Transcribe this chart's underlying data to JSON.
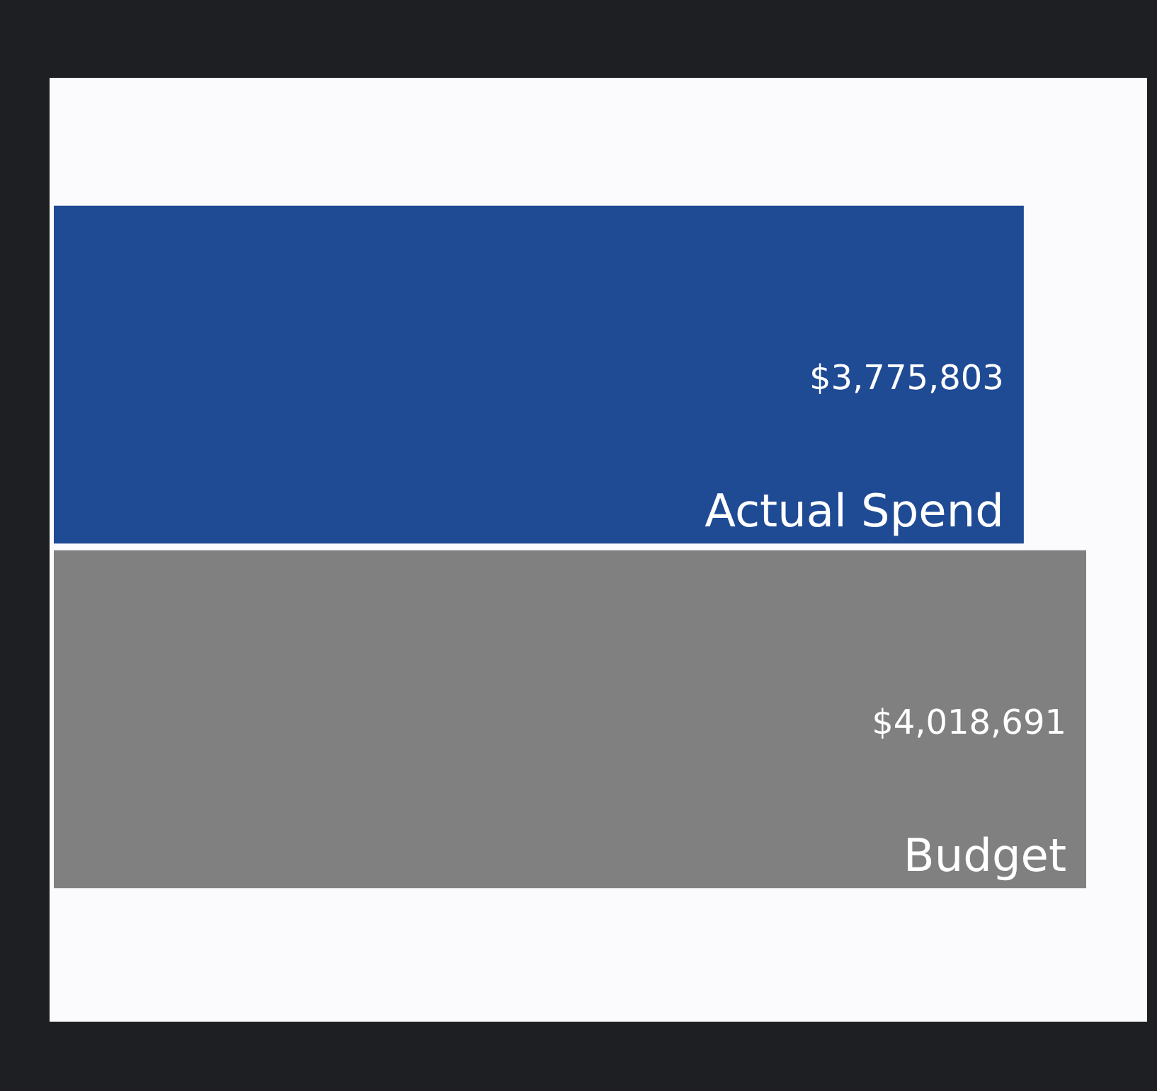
{
  "chart_data": {
    "type": "bar",
    "orientation": "horizontal",
    "categories": [
      "Actual Spend",
      "Budget"
    ],
    "values": [
      3775803,
      4018691
    ],
    "colors": [
      "#1f4a94",
      "#808080"
    ],
    "value_labels": [
      "$3,775,803",
      "$4,018,691"
    ]
  }
}
